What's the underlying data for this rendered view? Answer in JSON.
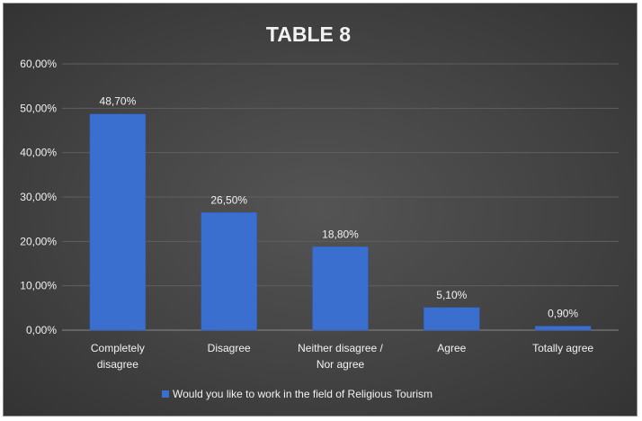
{
  "chart_data": {
    "type": "bar",
    "title": "TABLE 8",
    "categories": [
      [
        "Completely",
        "disagree"
      ],
      [
        "Disagree"
      ],
      [
        "Neither disagree /",
        "Nor agree"
      ],
      [
        "Agree"
      ],
      [
        "Totally agree"
      ]
    ],
    "series": [
      {
        "name": "Would you like to work in the field of Religious Tourism",
        "values": [
          48.7,
          26.5,
          18.8,
          5.1,
          0.9
        ],
        "labels": [
          "48,70%",
          "26,50%",
          "18,80%",
          "5,10%",
          "0,90%"
        ],
        "color": "#3a6fd0"
      }
    ],
    "ylim": [
      0,
      60
    ],
    "yticks": [
      0,
      10,
      20,
      30,
      40,
      50,
      60
    ],
    "ytick_labels": [
      "0,00%",
      "10,00%",
      "20,00%",
      "30,00%",
      "40,00%",
      "50,00%",
      "60,00%"
    ],
    "grid": true,
    "legend_position": "bottom",
    "colors": {
      "text": "#f2f2f2",
      "gridline": "#5f5f5f",
      "axis": "#8a8a8a"
    }
  }
}
